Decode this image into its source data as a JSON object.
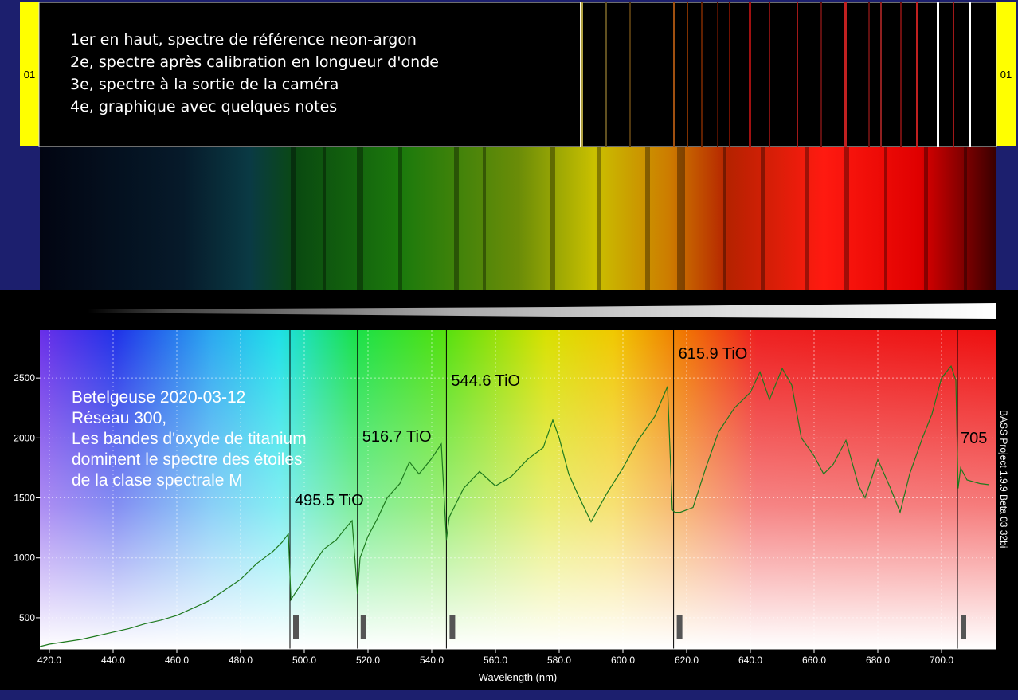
{
  "reference_panel": {
    "label_left": "01",
    "label_right": "01",
    "notes": [
      "1er en haut, spectre de référence neon-argon",
      "2e, spectre après calibration en longueur d'onde",
      "3e, spectre à la sortie de la caméra",
      "4e, graphique avec quelques notes"
    ]
  },
  "chart_data": {
    "type": "line",
    "xlabel": "Wavelength (nm)",
    "ylabel": "",
    "xlim": [
      417,
      717
    ],
    "ylim": [
      240,
      2900
    ],
    "x_ticks": [
      "420.0",
      "440.0",
      "460.0",
      "480.0",
      "500.0",
      "520.0",
      "540.0",
      "560.0",
      "580.0",
      "600.0",
      "620.0",
      "640.0",
      "660.0",
      "680.0",
      "700.0"
    ],
    "y_ticks": [
      "500",
      "1000",
      "1500",
      "2000",
      "2500"
    ],
    "grid": true,
    "background": "rainbow spectrum gradient",
    "series": [
      {
        "color": "#1e7a1e",
        "x": [
          417,
          420,
          425,
          430,
          435,
          440,
          445,
          450,
          455,
          460,
          465,
          470,
          475,
          480,
          485,
          490,
          493,
          495,
          495.8,
          497,
          500,
          503,
          506,
          510,
          513,
          515,
          516.7,
          517.5,
          520,
          523,
          526,
          530,
          533,
          536,
          540,
          543,
          544.6,
          545.5,
          550,
          555,
          560,
          565,
          570,
          575,
          578,
          580,
          583,
          586,
          590,
          595,
          600,
          605,
          610,
          614,
          615.5,
          616.3,
          618,
          622,
          626,
          630,
          635,
          640,
          643,
          646,
          650,
          653,
          656,
          660,
          663,
          666,
          670,
          674,
          676,
          680,
          684,
          687,
          690,
          694,
          697,
          700,
          703,
          704.5,
          705.2,
          706,
          708,
          712,
          715
        ],
        "y": [
          260,
          280,
          300,
          320,
          350,
          380,
          410,
          450,
          480,
          520,
          580,
          640,
          730,
          820,
          950,
          1050,
          1130,
          1200,
          650,
          700,
          820,
          950,
          1070,
          1150,
          1250,
          1310,
          700,
          1000,
          1180,
          1330,
          1500,
          1620,
          1800,
          1700,
          1830,
          1950,
          1150,
          1340,
          1580,
          1720,
          1600,
          1680,
          1820,
          1920,
          2150,
          2000,
          1700,
          1520,
          1300,
          1540,
          1750,
          1990,
          2180,
          2430,
          1400,
          1380,
          1380,
          1420,
          1750,
          2050,
          2250,
          2380,
          2550,
          2320,
          2580,
          2440,
          2000,
          1850,
          1700,
          1780,
          1980,
          1600,
          1500,
          1820,
          1580,
          1380,
          1700,
          2000,
          2200,
          2500,
          2600,
          2480,
          1580,
          1750,
          1650,
          1620,
          1610
        ]
      }
    ],
    "annotations": [
      {
        "x": 495.5,
        "label": "495.5 TiO"
      },
      {
        "x": 516.7,
        "label": "516.7 TiO"
      },
      {
        "x": 544.6,
        "label": "544.6 TiO"
      },
      {
        "x": 615.9,
        "label": "615.9 TiO"
      },
      {
        "x": 705,
        "label": "705"
      }
    ],
    "overlay_text": [
      "Betelgeuse 2020-03-12",
      "Réseau 300,",
      "Les bandes d'oxyde de titanium",
      "dominent le spectre des étoiles",
      "de la clase spectrale M"
    ],
    "side_text": "BASS Project 1.9.9 Beta 03 32bi"
  }
}
